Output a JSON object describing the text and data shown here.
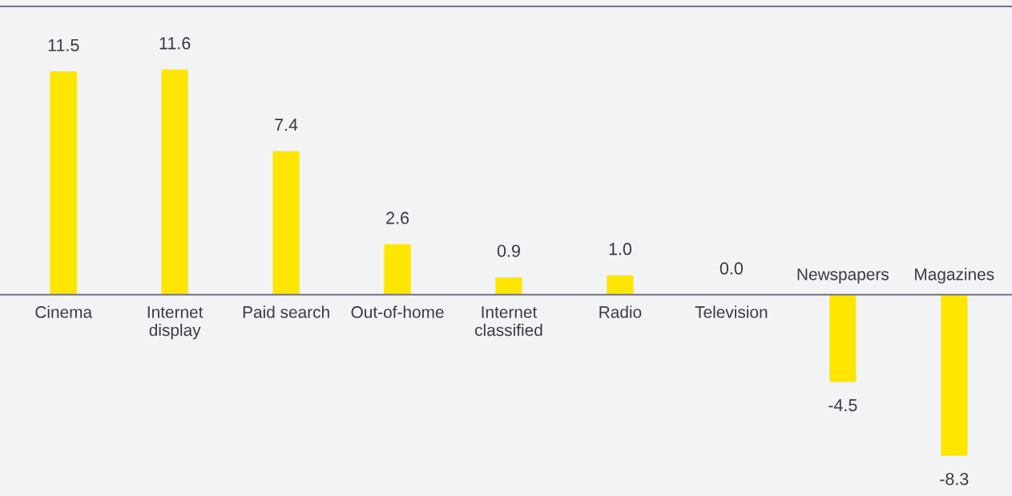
{
  "chart_data": {
    "type": "bar",
    "categories": [
      "Cinema",
      "Internet\ndisplay",
      "Paid search",
      "Out-of-home",
      "Internet\nclassified",
      "Radio",
      "Television",
      "Newspapers",
      "Magazines"
    ],
    "values": [
      11.5,
      11.6,
      7.4,
      2.6,
      0.9,
      1.0,
      0.0,
      -4.5,
      -8.3
    ],
    "value_labels": [
      "11.5",
      "11.6",
      "7.4",
      "2.6",
      "0.9",
      "1.0",
      "0.0",
      "-4.5",
      "-8.3"
    ],
    "color": "#ffe600"
  }
}
